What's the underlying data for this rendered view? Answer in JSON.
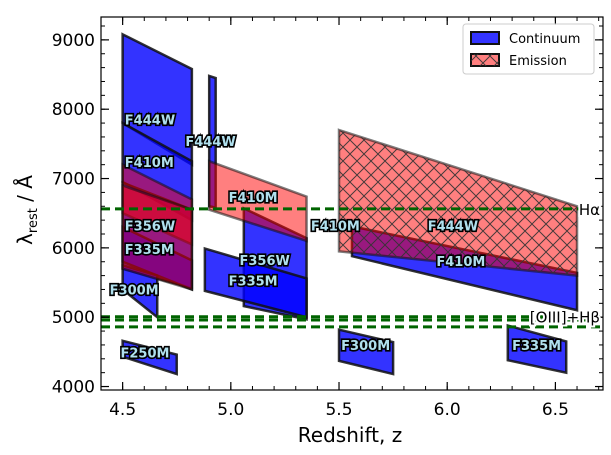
{
  "chart_data": {
    "type": "area",
    "xlabel": "Redshift, z",
    "ylabel_main": "λ",
    "ylabel_sub": "rest",
    "ylabel_tail": " / Å",
    "xlim": [
      4.4,
      6.72
    ],
    "ylim": [
      3950,
      9330
    ],
    "x_ticks": [
      4.5,
      5.0,
      5.5,
      6.0,
      6.5
    ],
    "x_tick_labels": [
      "4.5",
      "5.0",
      "5.5",
      "6.0",
      "6.5"
    ],
    "y_ticks": [
      4000,
      5000,
      6000,
      7000,
      8000,
      9000
    ],
    "y_tick_labels": [
      "4000",
      "5000",
      "6000",
      "7000",
      "8000",
      "9000"
    ],
    "legend": {
      "position": "upper right",
      "entries": [
        {
          "label": "Continuum",
          "color": "#0000ff"
        },
        {
          "label": "Emission",
          "color": "#ff0000"
        }
      ]
    },
    "reference_lines": [
      {
        "label": "Hα",
        "y": 6563,
        "color": "#006400"
      },
      {
        "label": "[OIII]+Hβ",
        "y": 5007,
        "color": "#006400"
      },
      {
        "label": "",
        "y": 4959,
        "color": "#006400"
      },
      {
        "label": "",
        "y": 4861,
        "color": "#006400"
      }
    ],
    "series": [
      {
        "name": "Continuum",
        "color": "#0000ff",
        "hatch": false,
        "regions": [
          {
            "filter": "F444W",
            "z": [
              4.5,
              4.82
            ],
            "lo": [
              7800,
              7200
            ],
            "hi": [
              9080,
              8580
            ]
          },
          {
            "filter": "F444W",
            "z": [
              4.9,
              4.93
            ],
            "lo": [
              6600,
              6580
            ],
            "hi": [
              8480,
              8450
            ]
          },
          {
            "filter": "F410M",
            "z": [
              4.5,
              4.82
            ],
            "lo": [
              6950,
              6400
            ],
            "hi": [
              7800,
              7250
            ]
          },
          {
            "filter": "F356W",
            "z": [
              4.5,
              4.82
            ],
            "lo": [
              5700,
              5420
            ],
            "hi": [
              6940,
              6550
            ]
          },
          {
            "filter": "F335M",
            "z": [
              4.5,
              4.82
            ],
            "lo": [
              5800,
              5400
            ],
            "hi": [
              6300,
              5820
            ]
          },
          {
            "filter": "F300M",
            "z": [
              4.5,
              4.66
            ],
            "lo": [
              5400,
              5000
            ],
            "hi": [
              5750,
              5600
            ]
          },
          {
            "filter": "F250M",
            "z": [
              4.5,
              4.75
            ],
            "lo": [
              4430,
              4180
            ],
            "hi": [
              4660,
              4460
            ]
          },
          {
            "filter": "F356W",
            "z": [
              5.06,
              5.35
            ],
            "lo": [
              5160,
              4970
            ],
            "hi": [
              6570,
              6140
            ]
          },
          {
            "filter": "F335M",
            "z": [
              4.88,
              5.35
            ],
            "lo": [
              5380,
              5000
            ],
            "hi": [
              5990,
              5560
            ]
          },
          {
            "filter": "F300M",
            "z": [
              5.5,
              5.75
            ],
            "lo": [
              4370,
              4180
            ],
            "hi": [
              4820,
              4640
            ]
          },
          {
            "filter": "F410M",
            "z": [
              5.56,
              6.6
            ],
            "lo": [
              5880,
              5100
            ],
            "hi": [
              6310,
              5640
            ]
          },
          {
            "filter": "F335M",
            "z": [
              6.28,
              6.55
            ],
            "lo": [
              4380,
              4200
            ],
            "hi": [
              4880,
              4650
            ]
          }
        ]
      },
      {
        "name": "Emission",
        "color": "#ff0000",
        "hatch": false,
        "regions": [
          {
            "filter": "F410M",
            "z": [
              4.5,
              4.82
            ],
            "lo": [
              6500,
              6050
            ],
            "hi": [
              7200,
              6700
            ]
          },
          {
            "filter": "F356W",
            "z": [
              4.5,
              4.82
            ],
            "lo": [
              5700,
              5400
            ],
            "hi": [
              6900,
              6550
            ]
          },
          {
            "filter": "F410M",
            "z": [
              4.9,
              5.35
            ],
            "lo": [
              6550,
              6100
            ],
            "hi": [
              7250,
              6740
            ]
          },
          {
            "filter": "F444W",
            "z": [
              5.5,
              6.6
            ],
            "lo": [
              5950,
              5600
            ],
            "hi": [
              7700,
              6600
            ]
          }
        ]
      }
    ],
    "labels": [
      {
        "text": "F444W",
        "x": 4.51,
        "y": 7780
      },
      {
        "text": "F444W",
        "x": 4.79,
        "y": 7470
      },
      {
        "text": "F410M",
        "x": 4.51,
        "y": 7170
      },
      {
        "text": "F356W",
        "x": 4.51,
        "y": 6250
      },
      {
        "text": "F335M",
        "x": 4.51,
        "y": 5910
      },
      {
        "text": "F300M",
        "x": 4.44,
        "y": 5330
      },
      {
        "text": "F250M",
        "x": 4.49,
        "y": 4420
      },
      {
        "text": "F410M",
        "x": 4.99,
        "y": 6660
      },
      {
        "text": "F356W",
        "x": 5.04,
        "y": 5750
      },
      {
        "text": "F335M",
        "x": 4.99,
        "y": 5460
      },
      {
        "text": "F410M",
        "x": 5.37,
        "y": 6250
      },
      {
        "text": "F444W",
        "x": 5.91,
        "y": 6250
      },
      {
        "text": "F410M",
        "x": 5.95,
        "y": 5740
      },
      {
        "text": "F300M",
        "x": 5.51,
        "y": 4530
      },
      {
        "text": "F335M",
        "x": 6.3,
        "y": 4530
      }
    ]
  }
}
